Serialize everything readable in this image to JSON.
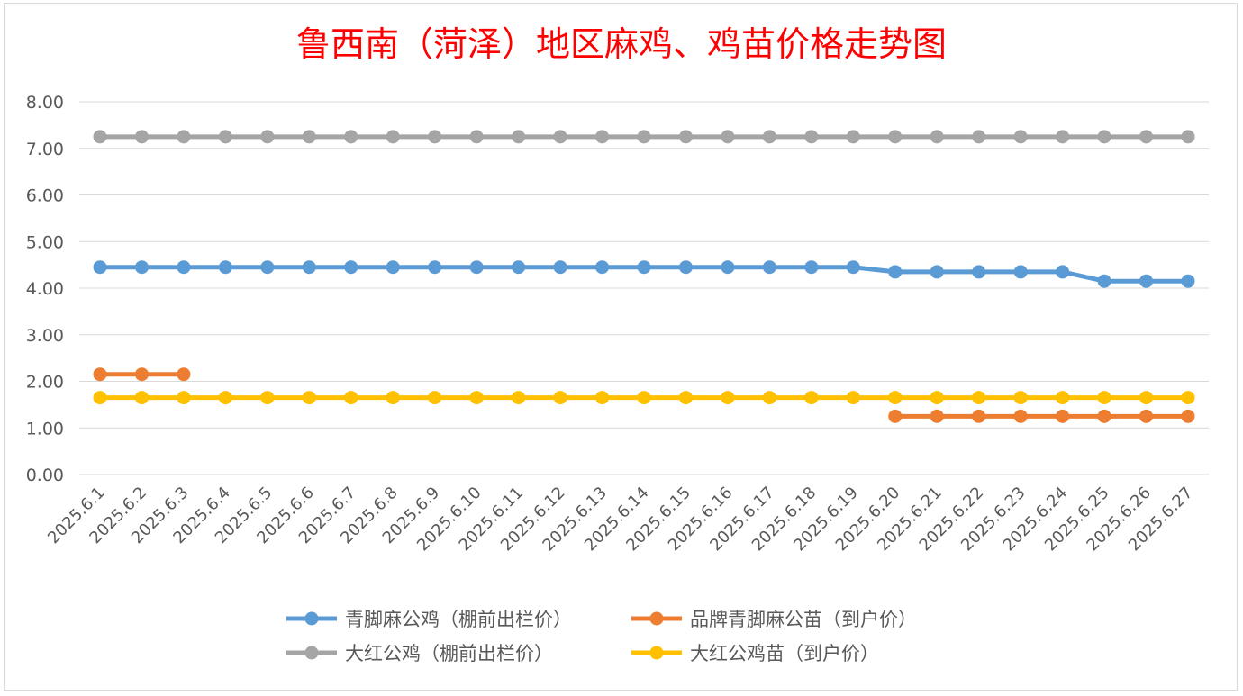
{
  "chart_data": {
    "type": "line",
    "title": "鲁西南（菏泽）地区麻鸡、鸡苗价格走势图",
    "xlabel": "",
    "ylabel": "",
    "ylim": [
      0,
      8
    ],
    "ytick_labels": [
      "0.00",
      "1.00",
      "2.00",
      "3.00",
      "4.00",
      "5.00",
      "6.00",
      "7.00",
      "8.00"
    ],
    "grid": true,
    "legend_position": "bottom",
    "categories": [
      "2025.6.1",
      "2025.6.2",
      "2025.6.3",
      "2025.6.4",
      "2025.6.5",
      "2025.6.6",
      "2025.6.7",
      "2025.6.8",
      "2025.6.9",
      "2025.6.10",
      "2025.6.11",
      "2025.6.12",
      "2025.6.13",
      "2025.6.14",
      "2025.6.15",
      "2025.6.16",
      "2025.6.17",
      "2025.6.18",
      "2025.6.19",
      "2025.6.20",
      "2025.6.21",
      "2025.6.22",
      "2025.6.23",
      "2025.6.24",
      "2025.6.25",
      "2025.6.26",
      "2025.6.27"
    ],
    "series": [
      {
        "name": "青脚麻公鸡（棚前出栏价）",
        "color": "#5b9bd5",
        "values": [
          4.45,
          4.45,
          4.45,
          4.45,
          4.45,
          4.45,
          4.45,
          4.45,
          4.45,
          4.45,
          4.45,
          4.45,
          4.45,
          4.45,
          4.45,
          4.45,
          4.45,
          4.45,
          4.45,
          4.35,
          4.35,
          4.35,
          4.35,
          4.35,
          4.15,
          4.15,
          4.15
        ]
      },
      {
        "name": "品牌青脚麻公苗（到户价）",
        "color": "#ed7d31",
        "values": [
          2.15,
          2.15,
          2.15,
          null,
          null,
          null,
          null,
          null,
          null,
          null,
          null,
          null,
          null,
          null,
          null,
          null,
          null,
          null,
          null,
          1.25,
          1.25,
          1.25,
          1.25,
          1.25,
          1.25,
          1.25,
          1.25
        ]
      },
      {
        "name": "大红公鸡（棚前出栏价）",
        "color": "#a5a5a5",
        "values": [
          7.25,
          7.25,
          7.25,
          7.25,
          7.25,
          7.25,
          7.25,
          7.25,
          7.25,
          7.25,
          7.25,
          7.25,
          7.25,
          7.25,
          7.25,
          7.25,
          7.25,
          7.25,
          7.25,
          7.25,
          7.25,
          7.25,
          7.25,
          7.25,
          7.25,
          7.25,
          7.25
        ]
      },
      {
        "name": "大红公鸡苗（到户价）",
        "color": "#ffc000",
        "values": [
          1.65,
          1.65,
          1.65,
          1.65,
          1.65,
          1.65,
          1.65,
          1.65,
          1.65,
          1.65,
          1.65,
          1.65,
          1.65,
          1.65,
          1.65,
          1.65,
          1.65,
          1.65,
          1.65,
          1.65,
          1.65,
          1.65,
          1.65,
          1.65,
          1.65,
          1.65,
          1.65
        ]
      }
    ]
  }
}
